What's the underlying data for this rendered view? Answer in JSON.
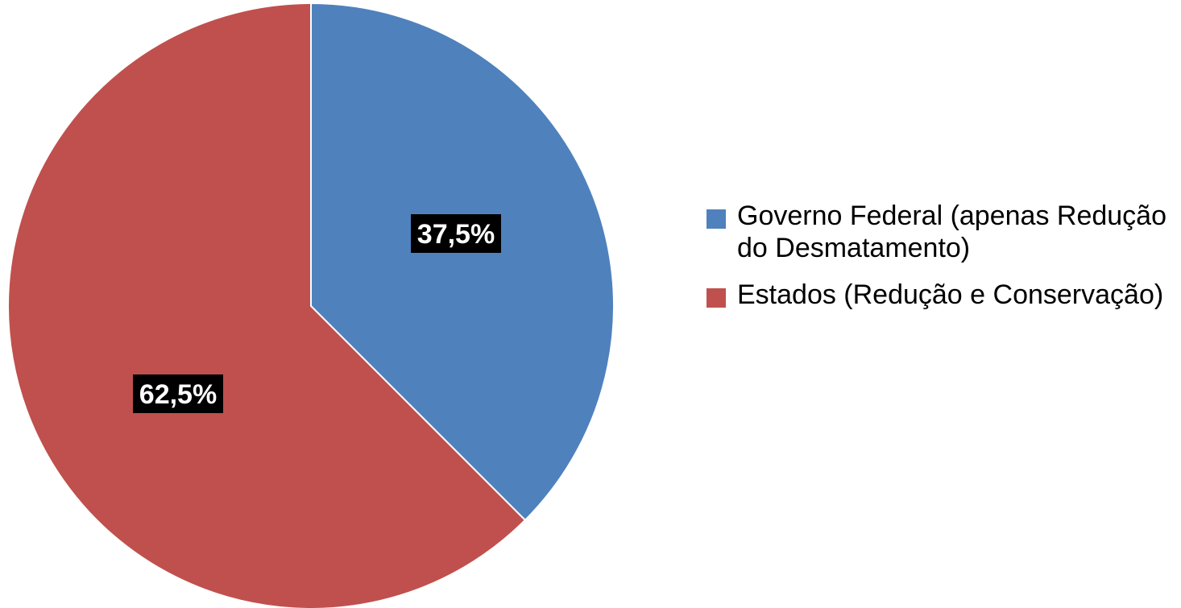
{
  "chart_data": {
    "type": "pie",
    "title": "",
    "slices": [
      {
        "name": "Governo Federal (apenas Redução do Desmatamento)",
        "value": 37.5,
        "label": "37,5%",
        "color": "#4f81bd"
      },
      {
        "name": "Estados (Redução e Conservação)",
        "value": 62.5,
        "label": "62,5%",
        "color": "#c0504d"
      }
    ],
    "legend_position": "right",
    "start_angle": "12 o'clock",
    "direction": "clockwise"
  }
}
